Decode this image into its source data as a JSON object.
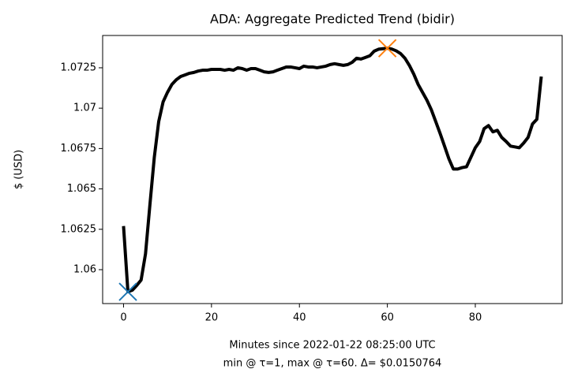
{
  "chart_data": {
    "type": "line",
    "title": "ADA: Aggregate Predicted Trend (bidir)",
    "ylabel": "$ (USD)",
    "xlabel": [
      "Minutes since 2022-01-22 08:25:00 UTC",
      "min @ τ=1, max @ τ=60. Δ= $0.0150764"
    ],
    "x": [
      0,
      1,
      2,
      3,
      4,
      5,
      6,
      7,
      8,
      9,
      10,
      11,
      12,
      13,
      14,
      15,
      16,
      17,
      18,
      19,
      20,
      21,
      22,
      23,
      24,
      25,
      26,
      27,
      28,
      29,
      30,
      31,
      32,
      33,
      34,
      35,
      36,
      37,
      38,
      39,
      40,
      41,
      42,
      43,
      44,
      45,
      46,
      47,
      48,
      49,
      50,
      51,
      52,
      53,
      54,
      55,
      56,
      57,
      58,
      59,
      60,
      61,
      62,
      63,
      64,
      65,
      66,
      67,
      68,
      69,
      70,
      71,
      72,
      73,
      74,
      75,
      76,
      77,
      78,
      79,
      80,
      81,
      82,
      83,
      84,
      85,
      86,
      87,
      88,
      89,
      90,
      91,
      92,
      93,
      94,
      95
    ],
    "values": [
      1.0627,
      1.05863,
      1.05873,
      1.05902,
      1.05936,
      1.06098,
      1.06402,
      1.06696,
      1.06917,
      1.07039,
      1.07098,
      1.07147,
      1.07176,
      1.07196,
      1.07206,
      1.07216,
      1.07221,
      1.0723,
      1.07235,
      1.07235,
      1.0724,
      1.0724,
      1.0724,
      1.07235,
      1.0724,
      1.07235,
      1.0725,
      1.07245,
      1.07235,
      1.07245,
      1.07245,
      1.07235,
      1.07225,
      1.07221,
      1.07225,
      1.07235,
      1.07245,
      1.07255,
      1.07255,
      1.0725,
      1.07245,
      1.0726,
      1.07255,
      1.07255,
      1.0725,
      1.07255,
      1.0726,
      1.0727,
      1.07275,
      1.0727,
      1.07265,
      1.0727,
      1.07284,
      1.07309,
      1.07304,
      1.07314,
      1.07324,
      1.07353,
      1.07365,
      1.07368,
      1.07371,
      1.07366,
      1.07355,
      1.07338,
      1.07309,
      1.07265,
      1.07211,
      1.07147,
      1.07098,
      1.07049,
      1.0699,
      1.06917,
      1.06843,
      1.06765,
      1.06686,
      1.06623,
      1.06623,
      1.06632,
      1.06637,
      1.06696,
      1.06755,
      1.06794,
      1.06873,
      1.06892,
      1.06853,
      1.06863,
      1.06819,
      1.06794,
      1.06765,
      1.0676,
      1.06755,
      1.06784,
      1.06819,
      1.06902,
      1.06931,
      1.07196
    ],
    "color": "#000000",
    "markers": [
      {
        "x": 1,
        "y": 1.05863,
        "color": "#1f77b4"
      },
      {
        "x": 60,
        "y": 1.07371,
        "color": "#ff7f0e"
      }
    ],
    "xlim": [
      -4.75,
      99.75
    ],
    "xticks": [
      0,
      20,
      40,
      60,
      80
    ],
    "ylim": [
      1.0579,
      1.0745
    ],
    "yticks": [
      1.06,
      1.0625,
      1.065,
      1.0675,
      1.07,
      1.0725
    ],
    "grid": false
  }
}
